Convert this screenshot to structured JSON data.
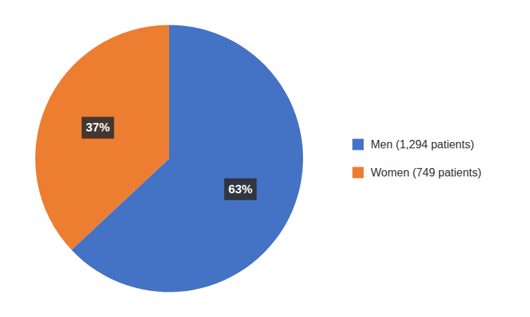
{
  "chart_data": {
    "type": "pie",
    "categories": [
      "Men (1,294 patients)",
      "Women (749 patients)"
    ],
    "values": [
      63,
      37
    ],
    "value_labels": [
      "63%",
      "37%"
    ],
    "colors": [
      "#4472C4",
      "#ED7D31"
    ],
    "data_labels": true,
    "legend": "right"
  }
}
